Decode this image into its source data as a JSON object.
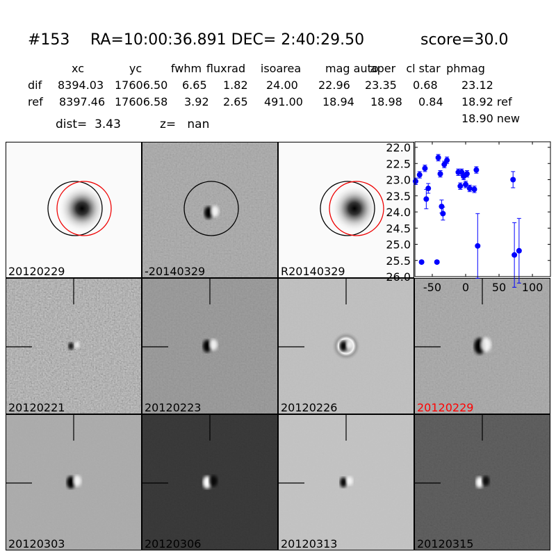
{
  "header": {
    "id": "#153",
    "coords": "RA=10:00:36.891 DEC= 2:40:29.50",
    "score": "score=30.0"
  },
  "table": {
    "columns": [
      "xc",
      "yc",
      "fwhm",
      "fluxrad",
      "isoarea",
      "mag auto",
      "aper",
      "cl star",
      "phmag"
    ],
    "rows": [
      [
        "dif",
        "8394.03",
        "17606.50",
        "6.65",
        "1.82",
        "24.00",
        "22.96",
        "23.35",
        "0.68",
        "23.12"
      ],
      [
        "ref",
        "8397.46",
        "17606.58",
        "3.92",
        "2.65",
        "491.00",
        "18.94",
        "18.98",
        "0.84",
        "18.92 ref"
      ]
    ],
    "extra": "18.90 new"
  },
  "dist": "dist=  3.43",
  "z": "z=   nan",
  "panels": [
    {
      "label": "20120229"
    },
    {
      "label": "-20140329"
    },
    {
      "label": "R20140329"
    },
    null,
    {
      "label": "20120221"
    },
    {
      "label": "20120223"
    },
    {
      "label": "20120226"
    },
    {
      "label": "20120229",
      "label_color": "#ff0000"
    },
    {
      "label": "20120303"
    },
    {
      "label": "20120306"
    },
    {
      "label": "20120313"
    },
    {
      "label": "20120315"
    }
  ],
  "chart_data": {
    "type": "scatter",
    "x": [
      -75,
      -69,
      -61,
      -56,
      -59,
      -66,
      -43,
      -41,
      -38,
      -36,
      -34,
      -32,
      -28,
      -11,
      -8,
      -6,
      -3,
      0,
      2,
      6,
      13,
      16,
      18,
      71,
      73,
      80
    ],
    "values": [
      23.05,
      22.85,
      22.65,
      23.27,
      23.6,
      25.55,
      25.55,
      22.32,
      22.82,
      23.83,
      24.05,
      22.53,
      22.4,
      22.77,
      23.2,
      22.77,
      22.9,
      23.15,
      22.82,
      23.27,
      23.3,
      22.7,
      25.05,
      23.0,
      25.33,
      25.2
    ],
    "errors": [
      0.1,
      0.1,
      0.1,
      0.15,
      0.3,
      0.05,
      0.05,
      0.1,
      0.1,
      0.2,
      0.2,
      0.1,
      0.1,
      0.1,
      0.1,
      0.1,
      0.1,
      0.1,
      0.1,
      0.1,
      0.1,
      0.1,
      1.0,
      0.25,
      1.0,
      1.0
    ],
    "color": "#0000ff",
    "xlim": [
      -76,
      127
    ],
    "xticks": [
      -50,
      0,
      50,
      100
    ],
    "ylim": [
      26,
      22
    ],
    "yticks": [
      {
        "value": 22,
        "label": "22.0"
      },
      {
        "value": 22.5,
        "label": "22.5"
      },
      {
        "value": 23,
        "label": "23.0"
      },
      {
        "value": 23.5,
        "label": "23.5"
      },
      {
        "value": 24,
        "label": "24.0"
      },
      {
        "value": 24.5,
        "label": "24.5"
      },
      {
        "value": 25,
        "label": "25.0"
      },
      {
        "value": 25.5,
        "label": "25.5"
      },
      {
        "value": 26,
        "label": "26.0"
      }
    ]
  }
}
